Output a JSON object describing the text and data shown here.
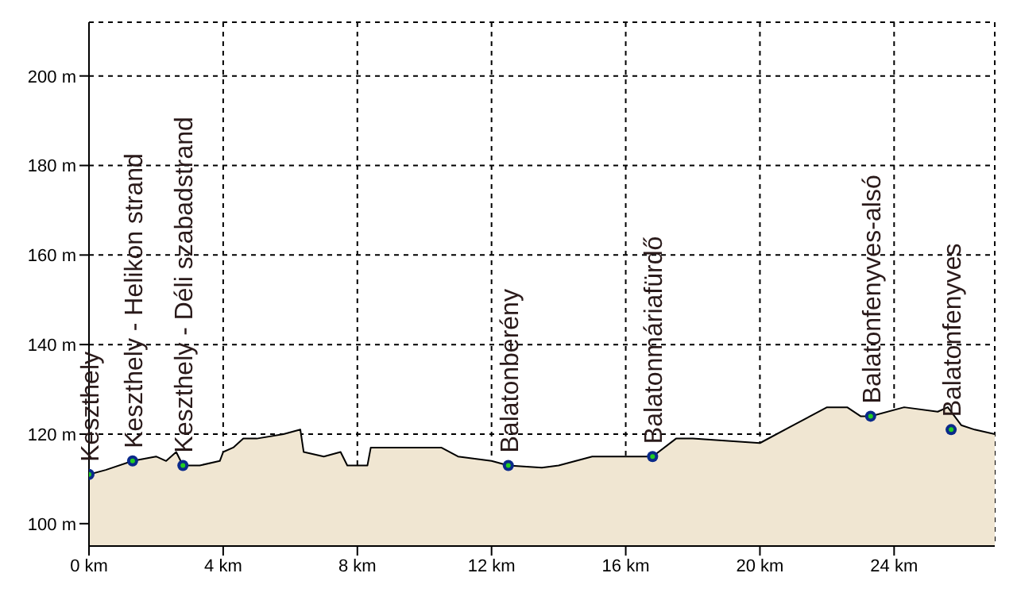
{
  "chart_data": {
    "type": "area",
    "xlim": [
      0,
      27
    ],
    "ylim": [
      95,
      212
    ],
    "xticks": [
      {
        "value": 0,
        "label": "0 km"
      },
      {
        "value": 4,
        "label": "4 km"
      },
      {
        "value": 8,
        "label": "8 km"
      },
      {
        "value": 12,
        "label": "12 km"
      },
      {
        "value": 16,
        "label": "16 km"
      },
      {
        "value": 20,
        "label": "20 km"
      },
      {
        "value": 24,
        "label": "24 km"
      }
    ],
    "yticks": [
      {
        "value": 100,
        "label": "100 m"
      },
      {
        "value": 120,
        "label": "120 m"
      },
      {
        "value": 140,
        "label": "140 m"
      },
      {
        "value": 160,
        "label": "160 m"
      },
      {
        "value": 180,
        "label": "180 m"
      },
      {
        "value": 200,
        "label": "200 m"
      }
    ],
    "grid": true,
    "line_style": "dashed",
    "legend": false,
    "series": [
      {
        "color": "#f0e6d2",
        "x": [
          0,
          0.5,
          1.3,
          2,
          2.3,
          2.6,
          2.8,
          3.3,
          3.9,
          4,
          4.3,
          4.6,
          5,
          5.8,
          6.3,
          6.4,
          7,
          7.5,
          7.7,
          8.3,
          8.4,
          10.5,
          11,
          12,
          12.5,
          13.5,
          14,
          15,
          15.5,
          16.8,
          17.5,
          18,
          20,
          21,
          22,
          22.6,
          23,
          23.3,
          24.3,
          25.3,
          25.6,
          26,
          26.4,
          27
        ],
        "values": [
          111,
          112,
          114,
          115,
          114,
          116,
          113,
          113,
          114,
          116,
          117,
          119,
          119,
          120,
          121,
          116,
          115,
          116,
          113,
          113,
          117,
          117,
          115,
          114,
          113,
          112.5,
          113,
          115,
          115,
          115,
          119,
          119,
          118,
          122,
          126,
          126,
          124,
          124,
          126,
          125,
          126,
          122,
          121,
          120
        ]
      },
      {
        "type": "scatter",
        "color": "#0a2a8a",
        "x": [
          0,
          1.3,
          2.8,
          12.5,
          16.8,
          23.3,
          25.7
        ],
        "values": [
          111,
          114,
          113,
          113,
          115,
          124,
          121
        ]
      }
    ],
    "annotations": [
      {
        "text": "Keszthely",
        "x": 0,
        "y": 111
      },
      {
        "text": "Keszthely - Helikon strand",
        "x": 1.3,
        "y": 114
      },
      {
        "text": "Keszthely - Déli szabadstrand",
        "x": 2.8,
        "y": 113
      },
      {
        "text": "Balatonberény",
        "x": 12.5,
        "y": 113
      },
      {
        "text": "Balatonmáriafürdő",
        "x": 16.8,
        "y": 115
      },
      {
        "text": "Balatonfenyves-alsó",
        "x": 23.3,
        "y": 124
      },
      {
        "text": "Balatonfenyves",
        "x": 25.7,
        "y": 121
      }
    ]
  }
}
